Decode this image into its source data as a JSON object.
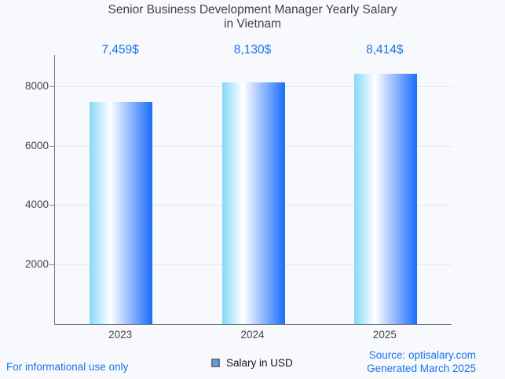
{
  "chart": {
    "title_line1": "Senior Business Development Manager Yearly Salary",
    "title_line2": "in Vietnam"
  },
  "chart_data": {
    "type": "bar",
    "title": "Senior Business Development Manager Yearly Salary in Vietnam",
    "categories": [
      "2023",
      "2024",
      "2025"
    ],
    "series": [
      {
        "name": "Salary in USD",
        "values": [
          7459,
          8130,
          8414
        ]
      }
    ],
    "value_labels": [
      "7,459$",
      "8,130$",
      "8,414$"
    ],
    "xlabel": "",
    "ylabel": "",
    "ylim": [
      0,
      9050
    ],
    "yticks": [
      2000,
      4000,
      6000,
      8000
    ],
    "grid": true,
    "legend_position": "bottom"
  },
  "legend": {
    "label": "Salary in USD",
    "swatch_color": "#58a0f2"
  },
  "footer": {
    "disclaimer": "For informational use only",
    "source": "Source: optisalary.com",
    "generated": "Generated March 2025"
  },
  "colors": {
    "accent_blue": "#1a73e8",
    "title_gray": "#424242",
    "bar_gradient": [
      "#85d8fb",
      "#ffffff",
      "#1b6cfe"
    ],
    "gridline": "#e4e6e9",
    "axis": "#70757a",
    "background": "#f8f9fc"
  }
}
